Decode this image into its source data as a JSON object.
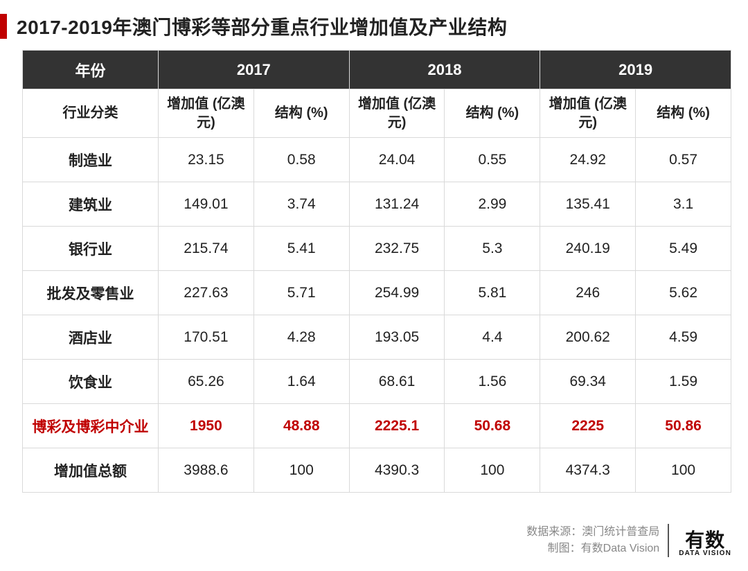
{
  "title": "2017-2019年澳门博彩等部分重点行业增加值及产业结构",
  "table": {
    "year_label": "年份",
    "years": [
      "2017",
      "2018",
      "2019"
    ],
    "industry_label": "行业分类",
    "sub_value_label": "增加值\n(亿澳元)",
    "sub_pct_label": "结构\n(%)",
    "columns_style": {
      "header_bg": "#333333",
      "header_fg": "#ffffff",
      "border_color": "#d9d9d9",
      "highlight_color": "#c00000",
      "font_size_header": 22,
      "font_size_body": 21
    },
    "rows": [
      {
        "name": "制造业",
        "v2017": "23.15",
        "p2017": "0.58",
        "v2018": "24.04",
        "p2018": "0.55",
        "v2019": "24.92",
        "p2019": "0.57",
        "highlight": false
      },
      {
        "name": "建筑业",
        "v2017": "149.01",
        "p2017": "3.74",
        "v2018": "131.24",
        "p2018": "2.99",
        "v2019": "135.41",
        "p2019": "3.1",
        "highlight": false
      },
      {
        "name": "银行业",
        "v2017": "215.74",
        "p2017": "5.41",
        "v2018": "232.75",
        "p2018": "5.3",
        "v2019": "240.19",
        "p2019": "5.49",
        "highlight": false
      },
      {
        "name": "批发及零售业",
        "v2017": "227.63",
        "p2017": "5.71",
        "v2018": "254.99",
        "p2018": "5.81",
        "v2019": "246",
        "p2019": "5.62",
        "highlight": false
      },
      {
        "name": "酒店业",
        "v2017": "170.51",
        "p2017": "4.28",
        "v2018": "193.05",
        "p2018": "4.4",
        "v2019": "200.62",
        "p2019": "4.59",
        "highlight": false
      },
      {
        "name": "饮食业",
        "v2017": "65.26",
        "p2017": "1.64",
        "v2018": "68.61",
        "p2018": "1.56",
        "v2019": "69.34",
        "p2019": "1.59",
        "highlight": false
      },
      {
        "name": "博彩及博彩中介业",
        "v2017": "1950",
        "p2017": "48.88",
        "v2018": "2225.1",
        "p2018": "50.68",
        "v2019": "2225",
        "p2019": "50.86",
        "highlight": true
      },
      {
        "name": "增加值总额",
        "v2017": "3988.6",
        "p2017": "100",
        "v2018": "4390.3",
        "p2018": "100",
        "v2019": "4374.3",
        "p2019": "100",
        "highlight": false
      }
    ]
  },
  "footer": {
    "source_label": "数据来源：澳门统计普查局",
    "credit_label": "制图：有数Data Vision",
    "logo_cn": "有数",
    "logo_en": "DATA VISION"
  },
  "accent_color": "#c00000",
  "background_color": "#ffffff"
}
